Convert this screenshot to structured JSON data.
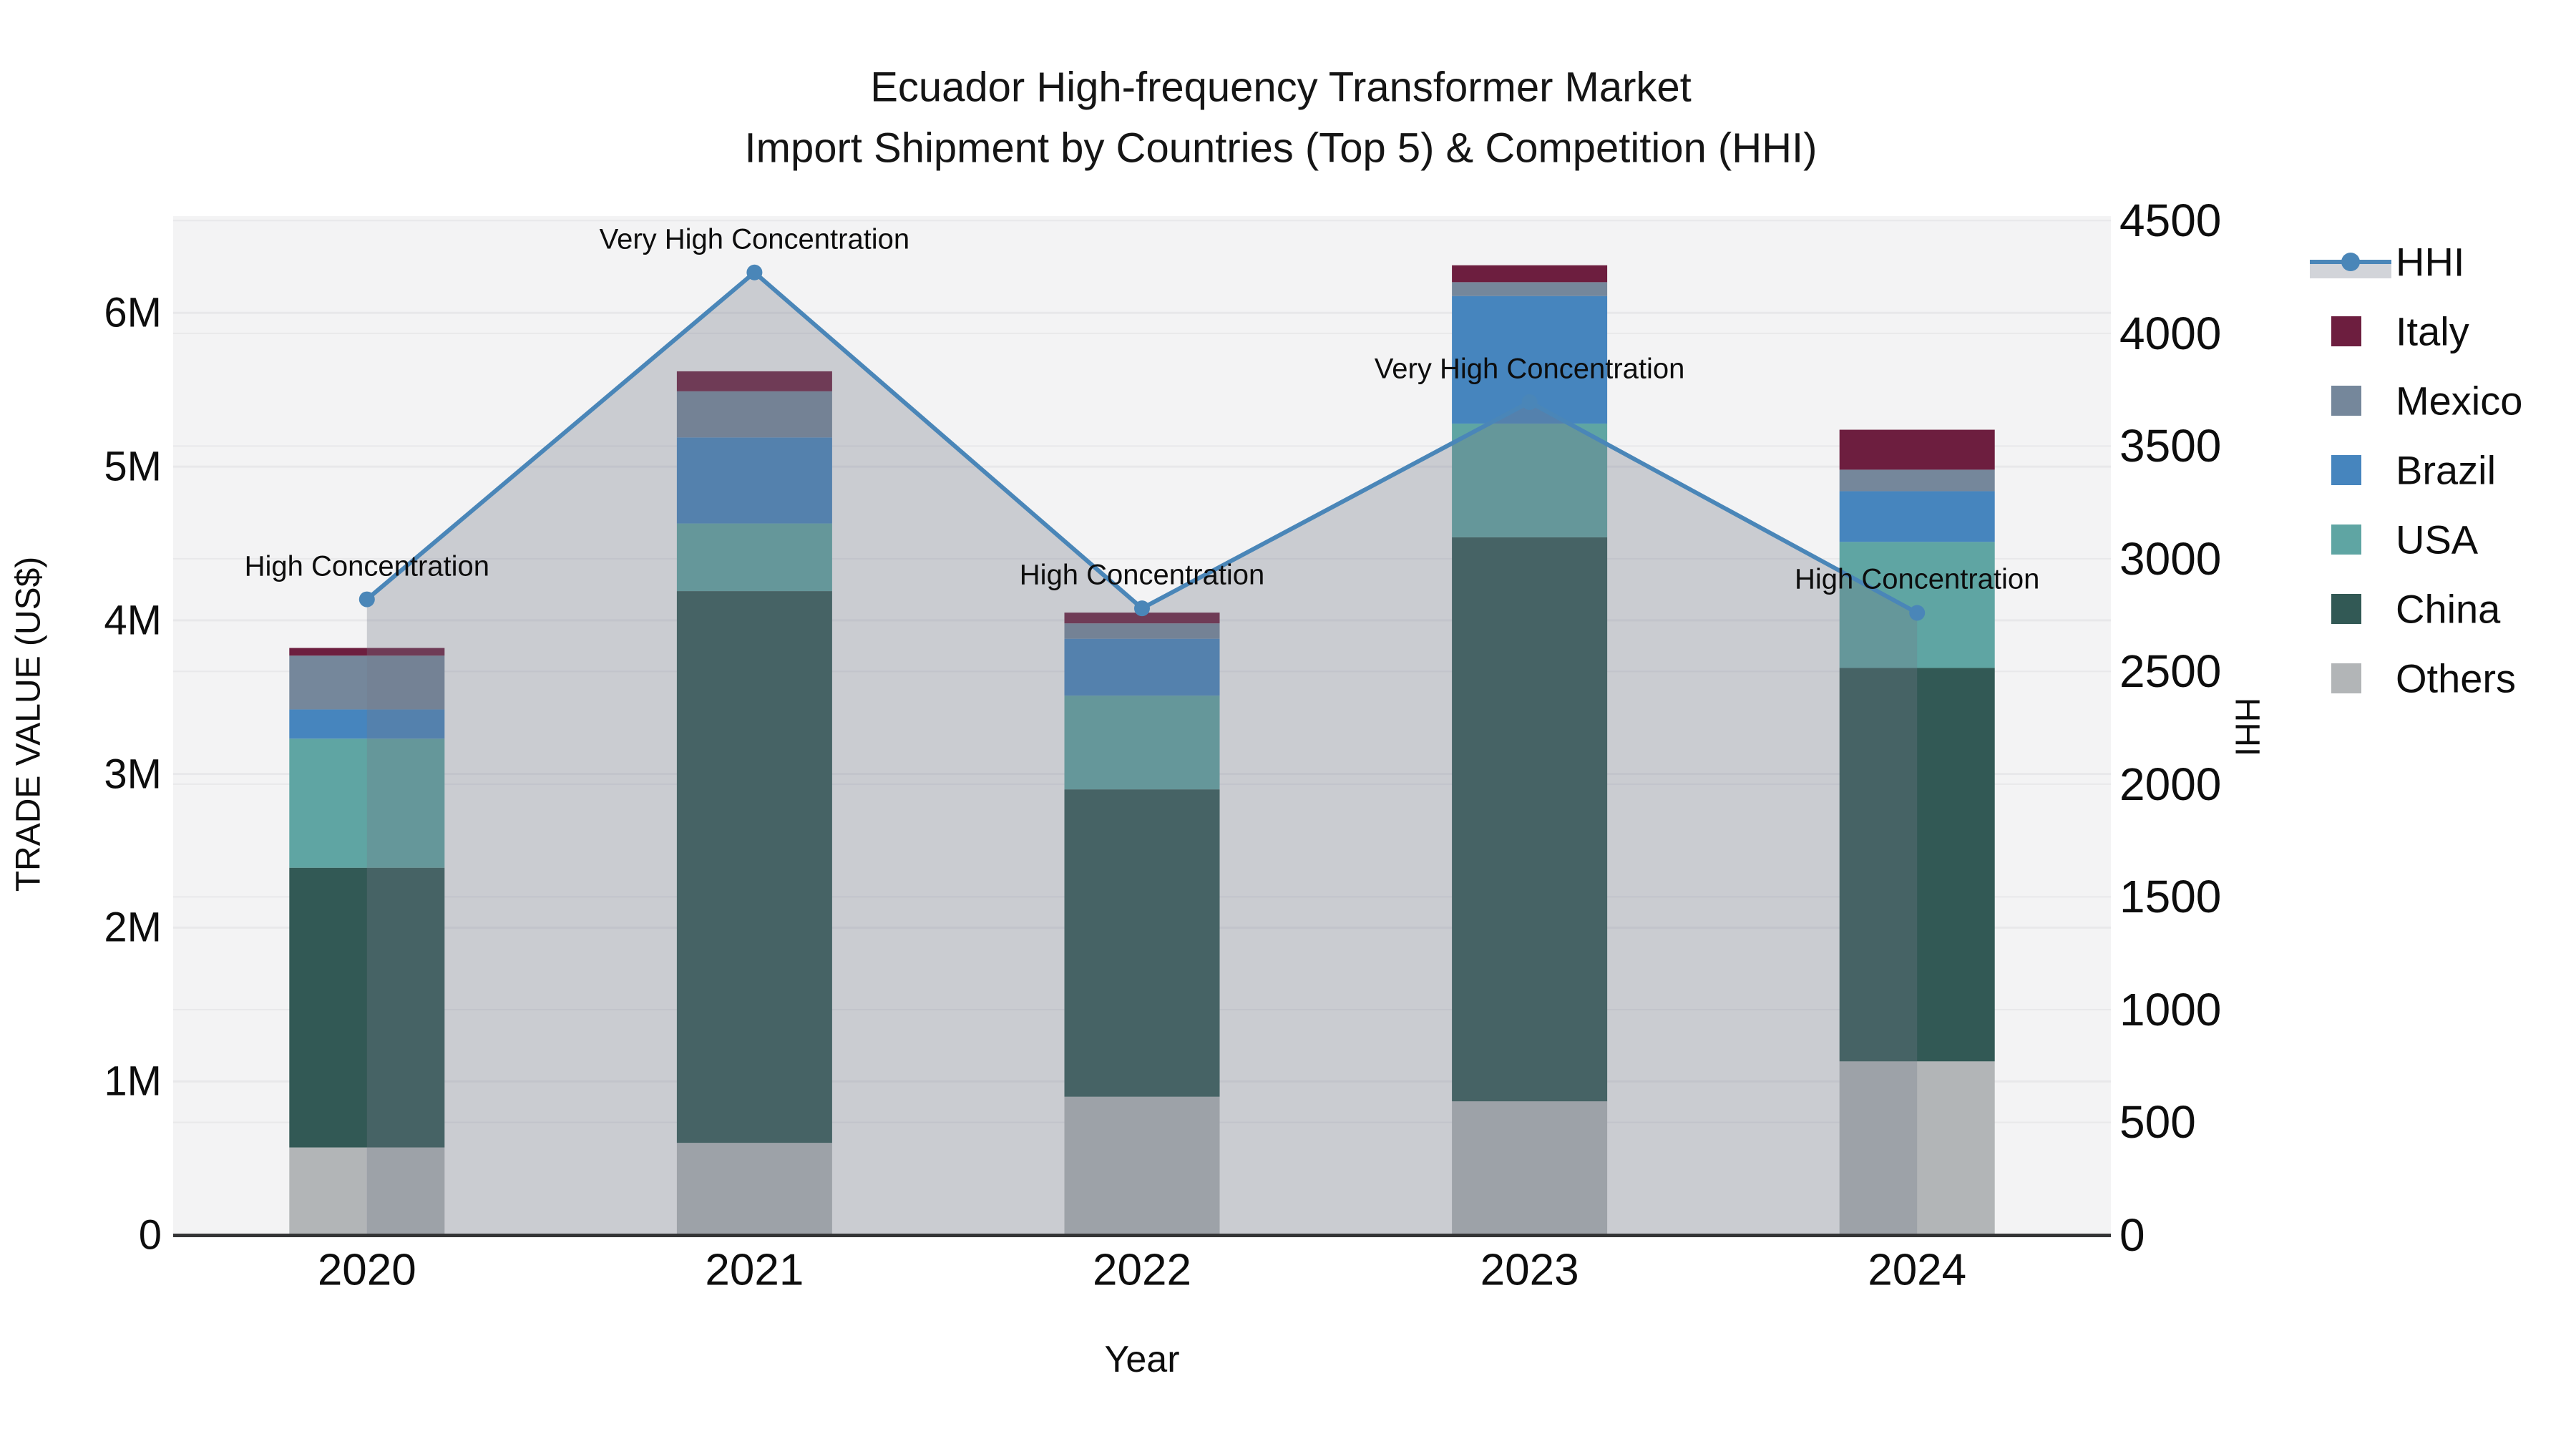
{
  "title": {
    "line1": "Ecuador High-frequency Transformer Market",
    "line2": "Import Shipment by Countries (Top 5) & Competition (HHI)"
  },
  "axes": {
    "x_label": "Year",
    "y_left_label": "TRADE VALUE (US$)",
    "y_right_label": "HHI",
    "y_left_ticks": [
      {
        "label": "0",
        "value": 0
      },
      {
        "label": "1M",
        "value": 1000000
      },
      {
        "label": "2M",
        "value": 2000000
      },
      {
        "label": "3M",
        "value": 3000000
      },
      {
        "label": "4M",
        "value": 4000000
      },
      {
        "label": "5M",
        "value": 5000000
      },
      {
        "label": "6M",
        "value": 6000000
      }
    ],
    "y_right_ticks": [
      {
        "label": "0",
        "value": 0
      },
      {
        "label": "500",
        "value": 500
      },
      {
        "label": "1000",
        "value": 1000
      },
      {
        "label": "1500",
        "value": 1500
      },
      {
        "label": "2000",
        "value": 2000
      },
      {
        "label": "2500",
        "value": 2500
      },
      {
        "label": "3000",
        "value": 3000
      },
      {
        "label": "3500",
        "value": 3500
      },
      {
        "label": "4000",
        "value": 4000
      },
      {
        "label": "4500",
        "value": 4500
      }
    ]
  },
  "legend": {
    "items": [
      {
        "label": "HHI",
        "type": "line",
        "color": "#4a86b8"
      },
      {
        "label": "Italy",
        "type": "swatch",
        "color": "#6d1e3f"
      },
      {
        "label": "Mexico",
        "type": "swatch",
        "color": "#75879b"
      },
      {
        "label": "Brazil",
        "type": "swatch",
        "color": "#4685be"
      },
      {
        "label": "USA",
        "type": "swatch",
        "color": "#5fa5a3"
      },
      {
        "label": "China",
        "type": "swatch",
        "color": "#325955"
      },
      {
        "label": "Others",
        "type": "swatch",
        "color": "#b2b5b7"
      }
    ]
  },
  "chart_data": {
    "type": "bar",
    "subtype": "stacked-bars-with-line-overlay",
    "categories": [
      "2020",
      "2021",
      "2022",
      "2023",
      "2024"
    ],
    "stack_order_bottom_to_top": [
      "Others",
      "China",
      "USA",
      "Brazil",
      "Mexico",
      "Italy"
    ],
    "series": [
      {
        "name": "Others",
        "color": "#b2b5b7",
        "values": [
          570000,
          600000,
          900000,
          870000,
          1130000
        ]
      },
      {
        "name": "China",
        "color": "#325955",
        "values": [
          1820000,
          3590000,
          2000000,
          3670000,
          2560000
        ]
      },
      {
        "name": "USA",
        "color": "#5fa5a3",
        "values": [
          840000,
          440000,
          610000,
          740000,
          820000
        ]
      },
      {
        "name": "Brazil",
        "color": "#4685be",
        "values": [
          190000,
          560000,
          370000,
          830000,
          330000
        ]
      },
      {
        "name": "Mexico",
        "color": "#75879b",
        "values": [
          350000,
          300000,
          100000,
          90000,
          140000
        ]
      },
      {
        "name": "Italy",
        "color": "#6d1e3f",
        "values": [
          50000,
          130000,
          70000,
          110000,
          260000
        ]
      }
    ],
    "bar_totals": [
      3820000,
      5620000,
      4050000,
      6310000,
      5240000
    ],
    "line_series": {
      "name": "HHI",
      "values": [
        2820,
        4270,
        2780,
        3695,
        2760
      ],
      "color": "#4a86b8",
      "area_fill": "rgba(116,122,138,0.32)"
    },
    "annotations": [
      {
        "category": "2020",
        "text": "High Concentration"
      },
      {
        "category": "2021",
        "text": "Very High Concentration"
      },
      {
        "category": "2022",
        "text": "High Concentration"
      },
      {
        "category": "2023",
        "text": "Very High Concentration"
      },
      {
        "category": "2024",
        "text": "High Concentration"
      }
    ],
    "title": "Ecuador High-frequency Transformer Market Import Shipment by Countries (Top 5) & Competition (HHI)",
    "xlabel": "Year",
    "ylabel_left": "TRADE VALUE (US$)",
    "ylabel_right": "HHI",
    "ylim_left": [
      0,
      6630000
    ],
    "ylim_right": [
      0,
      4520
    ],
    "grid": true,
    "legend_position": "right",
    "plot_background": "#f3f3f4",
    "gridline_color": "#e8e8ea",
    "axis_line_color": "#343536"
  }
}
